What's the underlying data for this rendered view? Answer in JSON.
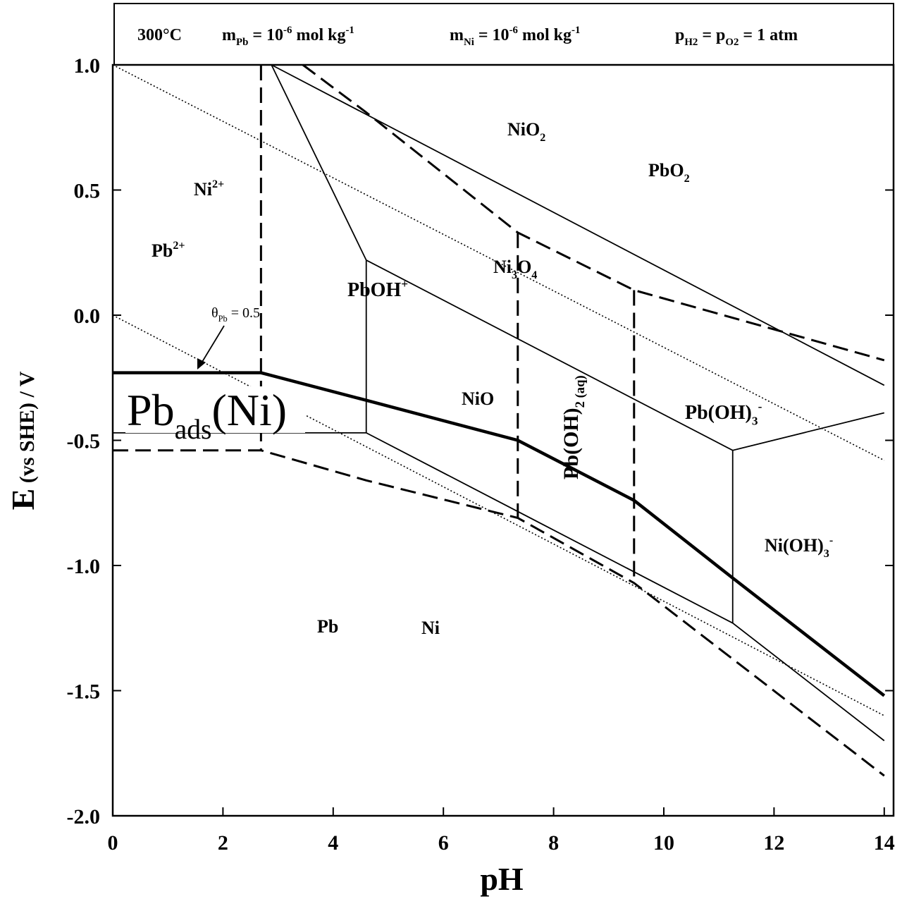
{
  "chart_data": {
    "type": "line",
    "header": [
      {
        "parts": [
          {
            "t": "300°C"
          }
        ]
      },
      {
        "parts": [
          {
            "t": "m"
          },
          {
            "sub": "Pb"
          },
          {
            "t": " = 10"
          },
          {
            "sup": "-6"
          },
          {
            "t": " mol kg"
          },
          {
            "sup": "-1"
          }
        ]
      },
      {
        "parts": [
          {
            "t": "m"
          },
          {
            "sub": "Ni"
          },
          {
            "t": " = 10"
          },
          {
            "sup": "-6"
          },
          {
            "t": " mol kg"
          },
          {
            "sup": "-1"
          }
        ]
      },
      {
        "parts": [
          {
            "t": "p"
          },
          {
            "sub": "H2"
          },
          {
            "t": " = p"
          },
          {
            "sub": "O2"
          },
          {
            "t": " = 1 atm"
          }
        ]
      }
    ],
    "xlabel": "pH",
    "ylabel": {
      "parts": [
        {
          "t": "E"
        },
        {
          "t": " (vs SHE) / V"
        }
      ]
    },
    "xlim": [
      0,
      14.17
    ],
    "ylim": [
      -2,
      1
    ],
    "xticks": [
      0,
      2,
      4,
      6,
      8,
      10,
      12,
      14
    ],
    "yticks": [
      {
        "value": 1,
        "label": "1.0"
      },
      0.5,
      {
        "value": 0,
        "label": "0.0"
      },
      -0.5,
      {
        "value": -1,
        "label": "-1.0"
      },
      -1.5,
      {
        "value": -2,
        "label": "-2.0"
      }
    ],
    "color": "#000000",
    "series": [
      {
        "style": "thick",
        "x": [
          0,
          2.69,
          4.6,
          7.35,
          9.46,
          11.25,
          14
        ],
        "y": [
          -0.23,
          -0.23,
          -0.34,
          -0.5,
          -0.74,
          -1.05,
          -1.52
        ]
      },
      {
        "style": "dashed",
        "x": [
          0,
          2.69,
          4.6,
          7.35,
          9.46,
          14
        ],
        "y": [
          -0.54,
          -0.54,
          -0.66,
          -0.81,
          -1.07,
          -1.84
        ]
      },
      {
        "style": "dashed",
        "x": [
          3.45,
          4.6,
          7.35,
          9.46,
          14
        ],
        "y": [
          1.0,
          0.81,
          0.33,
          0.1,
          -0.18
        ]
      },
      {
        "style": "dashed",
        "x": [
          2.69,
          2.69
        ],
        "y": [
          1.0,
          -0.54
        ]
      },
      {
        "style": "dashed",
        "x": [
          7.35,
          7.35
        ],
        "y": [
          0.33,
          -0.81
        ]
      },
      {
        "style": "dashed",
        "x": [
          9.46,
          9.46
        ],
        "y": [
          0.1,
          -1.07
        ]
      },
      {
        "style": "solid",
        "x": [
          2.88,
          14
        ],
        "y": [
          1.0,
          -0.28
        ]
      },
      {
        "style": "solid",
        "x": [
          2.88,
          4.6,
          4.6
        ],
        "y": [
          1.0,
          0.22,
          -0.47
        ]
      },
      {
        "style": "solid",
        "x": [
          4.6,
          11.25,
          14
        ],
        "y": [
          0.22,
          -0.54,
          -0.39
        ]
      },
      {
        "style": "solid",
        "x": [
          11.25,
          11.25
        ],
        "y": [
          -0.54,
          -1.23
        ]
      },
      {
        "style": "solid",
        "x": [
          0,
          4.6,
          11.25,
          14
        ],
        "y": [
          -0.47,
          -0.47,
          -1.23,
          -1.7
        ]
      },
      {
        "style": "dotted",
        "x": [
          0,
          14
        ],
        "y": [
          1.0,
          -0.58
        ]
      },
      {
        "style": "dotted",
        "x": [
          0,
          14
        ],
        "y": [
          0,
          -1.6
        ]
      }
    ],
    "annotations": [
      {
        "parts": [
          {
            "t": "NiO"
          },
          {
            "sub": "2"
          }
        ]
      },
      {
        "parts": [
          {
            "t": "PbO"
          },
          {
            "sub": "2"
          }
        ]
      },
      {
        "parts": [
          {
            "t": "Ni"
          },
          {
            "sup": "2+"
          }
        ]
      },
      {
        "parts": [
          {
            "t": "Pb"
          },
          {
            "sup": "2+"
          }
        ]
      },
      {
        "parts": [
          {
            "t": "Ni"
          },
          {
            "sub": "3"
          },
          {
            "t": "O"
          },
          {
            "sub": "4"
          }
        ]
      },
      {
        "parts": [
          {
            "t": "PbOH"
          },
          {
            "sup": "+"
          }
        ]
      },
      {
        "parts": [
          {
            "t": "NiO"
          }
        ]
      },
      {
        "parts": [
          {
            "t": "Pb(OH)"
          },
          {
            "sub": "2 (aq)"
          }
        ]
      },
      {
        "parts": [
          {
            "t": "Pb(OH)"
          },
          {
            "sub": "3"
          },
          {
            "sup": "-"
          }
        ]
      },
      {
        "parts": [
          {
            "t": "Ni(OH)"
          },
          {
            "sub": "3"
          },
          {
            "sup": "-"
          }
        ]
      },
      {
        "parts": [
          {
            "t": "Pb"
          }
        ]
      },
      {
        "parts": [
          {
            "t": "Ni"
          }
        ]
      },
      {
        "parts": [
          {
            "t": "θ"
          },
          {
            "sub": "Pb"
          },
          {
            "t": " = 0.5"
          }
        ]
      },
      {
        "parts": [
          {
            "t": "Pb"
          },
          {
            "sub": "ads"
          },
          {
            "t": "(Ni)"
          }
        ]
      }
    ]
  }
}
